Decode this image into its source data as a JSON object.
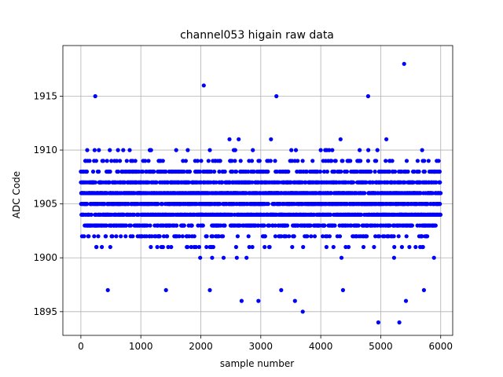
{
  "chart_data": {
    "type": "scatter",
    "title": "channel053 higain raw data",
    "xlabel": "sample number",
    "ylabel": "ADC Code",
    "xlim": [
      -300,
      6200
    ],
    "ylim": [
      1892.8,
      1919.7
    ],
    "xticks": [
      0,
      1000,
      2000,
      3000,
      4000,
      5000,
      6000
    ],
    "yticks": [
      1895,
      1900,
      1905,
      1910,
      1915
    ],
    "grid": true,
    "marker_color": "#0000ff",
    "n_samples": 6000,
    "dense_range": [
      1901,
      1911
    ],
    "outliers": [
      {
        "x": 240,
        "y": 1915
      },
      {
        "x": 2050,
        "y": 1916
      },
      {
        "x": 3260,
        "y": 1915
      },
      {
        "x": 4790,
        "y": 1915
      },
      {
        "x": 5390,
        "y": 1918
      },
      {
        "x": 4960,
        "y": 1894
      },
      {
        "x": 5310,
        "y": 1894
      },
      {
        "x": 3700,
        "y": 1895
      },
      {
        "x": 450,
        "y": 1897
      },
      {
        "x": 1420,
        "y": 1897
      },
      {
        "x": 2150,
        "y": 1897
      },
      {
        "x": 2680,
        "y": 1896
      },
      {
        "x": 2960,
        "y": 1896
      },
      {
        "x": 3570,
        "y": 1896
      },
      {
        "x": 5420,
        "y": 1896
      },
      {
        "x": 5720,
        "y": 1897
      },
      {
        "x": 3340,
        "y": 1897
      },
      {
        "x": 4370,
        "y": 1897
      }
    ]
  }
}
